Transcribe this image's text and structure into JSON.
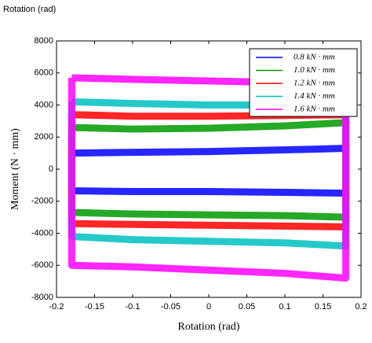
{
  "chart_data": {
    "type": "line",
    "caption": "Rotation (rad)",
    "xlabel": "Rotation (rad)",
    "ylabel": "Moment (N · mm)",
    "x": [
      -0.18,
      -0.1,
      0,
      0.1,
      0.18,
      0.18,
      0.1,
      0,
      -0.1,
      -0.18,
      -0.18
    ],
    "series": [
      {
        "name": "0.8 kN · mm",
        "color": "#0000ff",
        "values": [
          1000,
          1050,
          1100,
          1200,
          1300,
          -1500,
          -1450,
          -1400,
          -1400,
          -1350,
          1000
        ]
      },
      {
        "name": "1.0 kN · mm",
        "color": "#009a00",
        "values": [
          2600,
          2500,
          2550,
          2700,
          2900,
          -3000,
          -2900,
          -2850,
          -2800,
          -2700,
          2600
        ]
      },
      {
        "name": "1.2 kN · mm",
        "color": "#ff0000",
        "values": [
          3400,
          3300,
          3300,
          3350,
          3400,
          -3600,
          -3550,
          -3500,
          -3450,
          -3400,
          3400
        ]
      },
      {
        "name": "1.4 kN · mm",
        "color": "#00c0c0",
        "values": [
          4200,
          4100,
          4000,
          4000,
          4000,
          -4800,
          -4600,
          -4500,
          -4400,
          -4200,
          4200
        ]
      },
      {
        "name": "1.6 kN · mm",
        "color": "#ff00ff",
        "values": [
          5700,
          5600,
          5500,
          5400,
          5400,
          -6800,
          -6500,
          -6300,
          -6100,
          -6000,
          5700
        ]
      }
    ],
    "xlim": [
      -0.2,
      0.2
    ],
    "xticks": [
      -0.2,
      -0.15,
      -0.1,
      -0.05,
      0,
      0.05,
      0.1,
      0.15,
      0.2
    ],
    "ylim": [
      -8000,
      8000
    ],
    "yticks": [
      -8000,
      -6000,
      -4000,
      -2000,
      0,
      2000,
      4000,
      6000,
      8000
    ],
    "legend": "upper right"
  }
}
